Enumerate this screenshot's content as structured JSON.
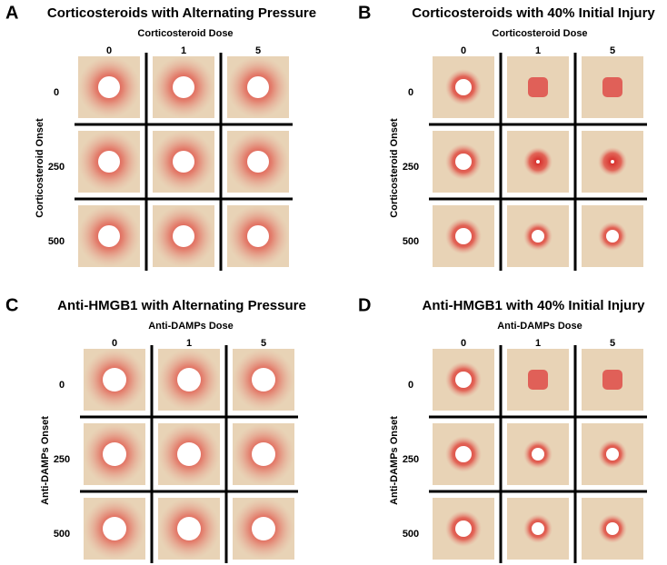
{
  "panels": [
    {
      "letter": "A",
      "title": "Corticosteroids with Alternating Pressure",
      "x_label": "Corticosteroid Dose",
      "columns": [
        "0",
        "1",
        "5"
      ],
      "y_label": "Corticosteroid Onset",
      "rows": [
        "0",
        "250",
        "500"
      ]
    },
    {
      "letter": "B",
      "title": "Corticosteroids with 40% Initial Injury",
      "x_label": "Corticosteroid Dose",
      "columns": [
        "0",
        "1",
        "5"
      ],
      "y_label": "Corticosteroid Onset",
      "rows": [
        "0",
        "250",
        "500"
      ]
    },
    {
      "letter": "C",
      "title": "Anti-HMGB1 with Alternating Pressure",
      "x_label": "Anti-DAMPs Dose",
      "columns": [
        "0",
        "1",
        "5"
      ],
      "y_label": "Anti-DAMPs Onset",
      "rows": [
        "0",
        "250",
        "500"
      ]
    },
    {
      "letter": "D",
      "title": "Anti-HMGB1 with 40% Initial Injury",
      "x_label": "Anti-DAMPs Dose",
      "columns": [
        "0",
        "1",
        "5"
      ],
      "y_label": "Anti-DAMPs Onset",
      "rows": [
        "0",
        "250",
        "500"
      ]
    }
  ]
}
